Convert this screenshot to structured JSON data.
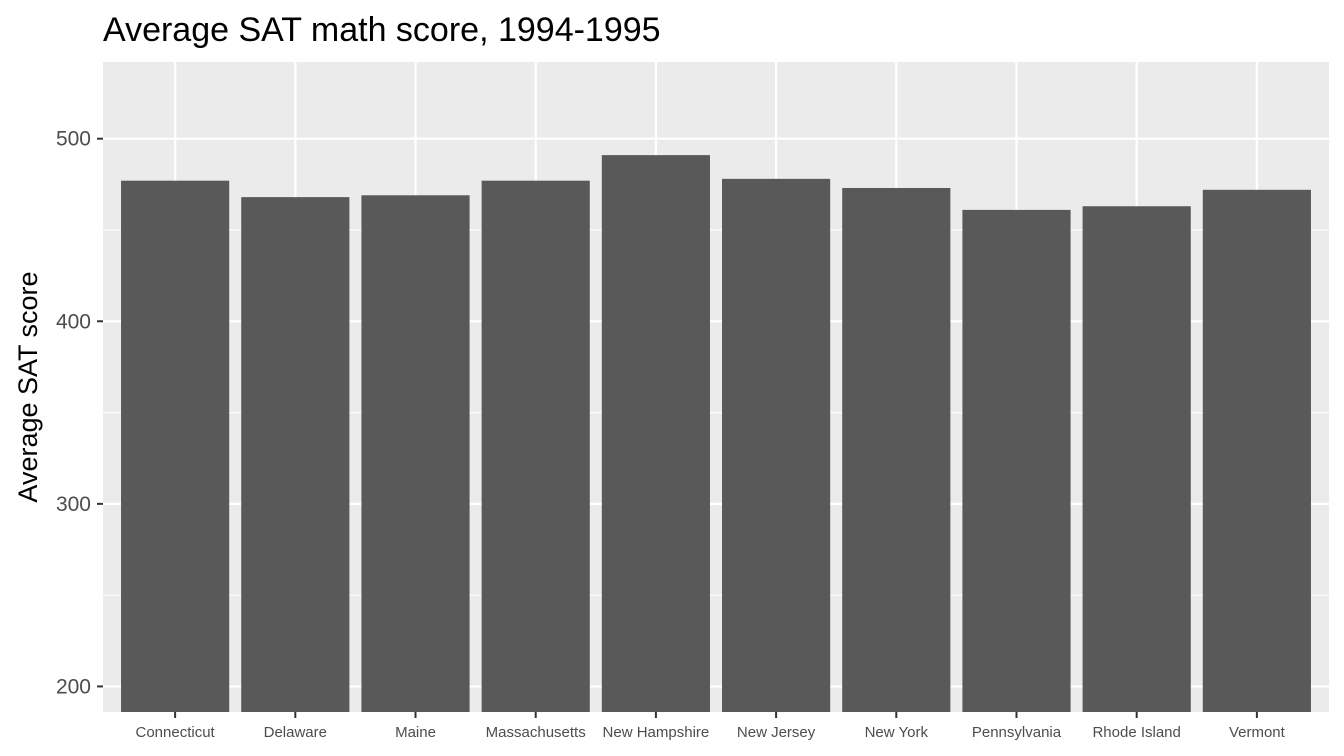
{
  "chart_data": {
    "type": "bar",
    "title": "Average SAT math score, 1994-1995",
    "xlabel": "",
    "ylabel": "Average SAT score",
    "categories": [
      "Connecticut",
      "Delaware",
      "Maine",
      "Massachusetts",
      "New Hampshire",
      "New Jersey",
      "New York",
      "Pennsylvania",
      "Rhode Island",
      "Vermont"
    ],
    "values": [
      477,
      468,
      469,
      477,
      491,
      478,
      473,
      461,
      463,
      472
    ],
    "ylim": [
      186,
      542
    ],
    "yticks": [
      200,
      300,
      400,
      500
    ],
    "grid": true,
    "legend": "none",
    "colors": {
      "bar": "#595959",
      "panel": "#ebebeb",
      "grid": "#ffffff",
      "tick_text": "#4d4d4d",
      "tick_mark": "#333333"
    }
  }
}
